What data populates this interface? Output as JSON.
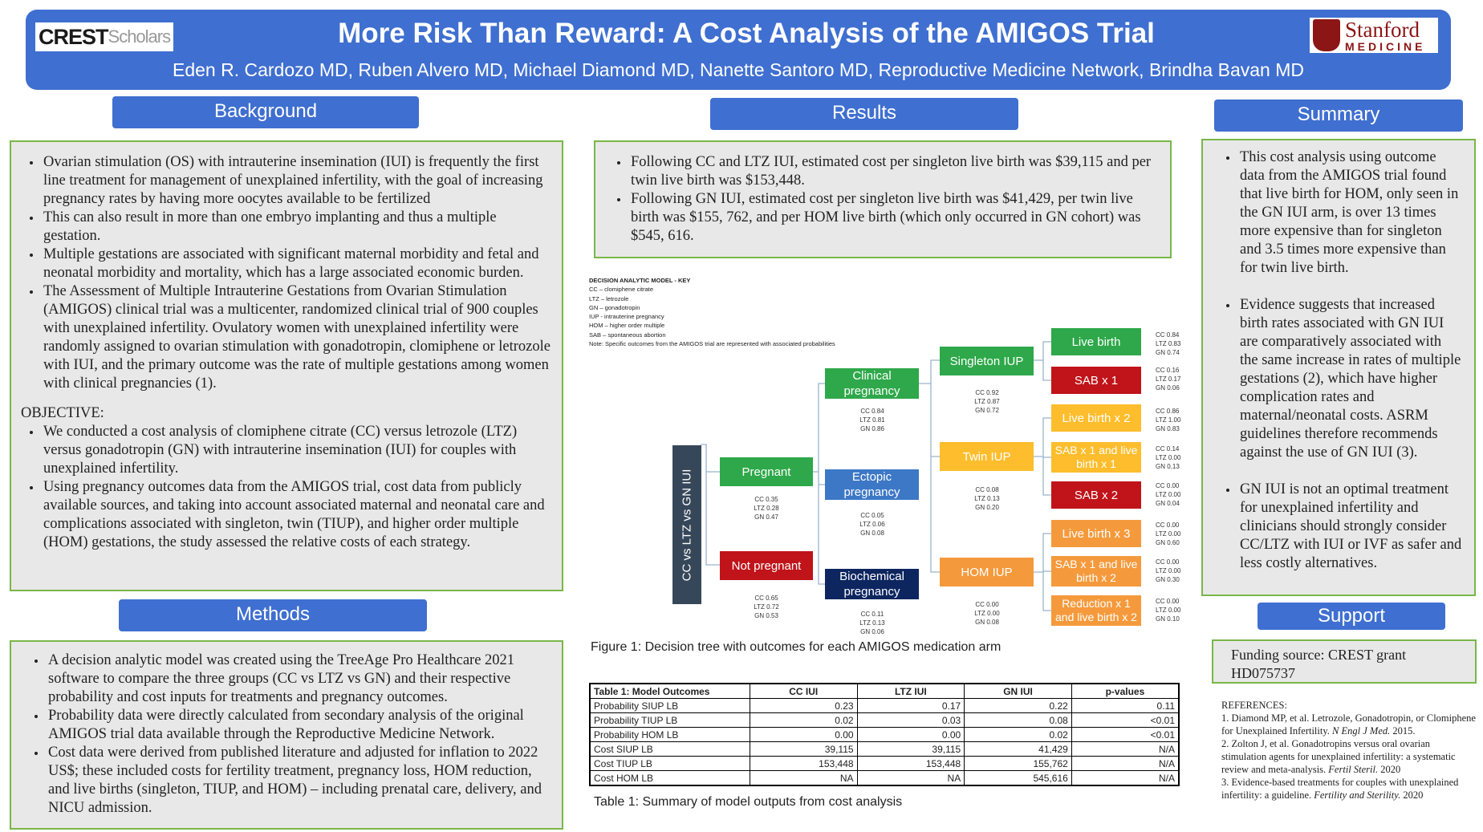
{
  "header": {
    "crest_logo": {
      "bold": "CREST",
      "light": "Scholars"
    },
    "title": "More Risk Than Reward: A Cost Analysis of the AMIGOS Trial",
    "authors": "Eden R. Cardozo MD, Ruben Alvero MD, Michael Diamond MD, Nanette Santoro MD, Reproductive Medicine Network, Brindha Bavan MD",
    "stanford_logo": {
      "name": "Stanford",
      "sub": "MEDICINE"
    }
  },
  "background": {
    "heading": "Background",
    "bullets": [
      "Ovarian stimulation (OS) with intrauterine insemination (IUI) is frequently the first line treatment for management of unexplained infertility, with the goal of increasing pregnancy rates by having more oocytes available to be fertilized",
      "This can also result in more than one embryo implanting and thus a multiple gestation.",
      "Multiple gestations are associated with significant maternal morbidity and fetal and neonatal morbidity and mortality, which has a large associated economic burden.",
      "The Assessment of Multiple Intrauterine Gestations from Ovarian Stimulation (AMIGOS) clinical trial was a multicenter, randomized clinical trial of 900 couples with unexplained infertility.  Ovulatory women with unexplained infertility were randomly assigned to ovarian stimulation with gonadotropin, clomiphene or letrozole with IUI, and the primary outcome was the rate of multiple gestations among women with clinical pregnancies (1)."
    ],
    "objective_label": "OBJECTIVE:",
    "objective_bullets": [
      "We conducted a cost analysis of clomiphene citrate (CC) versus letrozole (LTZ) versus gonadotropin (GN) with intrauterine insemination (IUI) for couples with unexplained infertility.",
      "Using pregnancy outcomes data from the AMIGOS trial, cost data from publicly available sources, and taking into account associated maternal and neonatal care and complications associated with singleton, twin (TIUP), and higher order multiple (HOM) gestations, the study assessed the relative costs of each strategy."
    ]
  },
  "methods": {
    "heading": "Methods",
    "bullets": [
      "A decision analytic model was created using the TreeAge Pro Healthcare 2021 software to compare the three groups (CC vs LTZ vs GN) and their respective probability and cost inputs for treatments and pregnancy outcomes.",
      "Probability data were directly calculated from secondary analysis of the original AMIGOS trial data available through the Reproductive Medicine Network.",
      "Cost data were derived from published literature and adjusted for inflation to 2022 US$; these included costs for fertility treatment, pregnancy loss, HOM reduction, and live births (singleton, TIUP, and HOM) – including prenatal care, delivery, and NICU admission."
    ]
  },
  "results": {
    "heading": "Results",
    "bullets": [
      "Following CC and LTZ IUI, estimated cost per singleton live birth was $39,115 and per twin live birth was $153,448.",
      "Following GN IUI, estimated cost per singleton live birth was $41,429, per twin live birth was $155, 762, and per HOM live birth (which only occurred in GN cohort) was $545, 616."
    ],
    "key": {
      "title": "DECISION ANALYTIC MODEL - KEY",
      "lines": [
        "CC – clomiphene citrate",
        "LTZ – letrozole",
        "GN – gonadotropin",
        "IUP - intrauterine pregnancy",
        "HOM – higher order multiple",
        "SAB – spontaneous abortion",
        "Note: Specific outcomes from the AMIGOS trial are represented with associated probabilities"
      ]
    },
    "tree": {
      "root": "CC vs LTZ vs GN IUI",
      "nodes": {
        "pregnant": {
          "label": "Pregnant",
          "probs": [
            "CC 0.35",
            "LTZ 0.28",
            "GN 0.47"
          ]
        },
        "not_pregnant": {
          "label": "Not pregnant",
          "probs": [
            "CC 0.65",
            "LTZ 0.72",
            "GN 0.53"
          ]
        },
        "clinical": {
          "label": "Clinical pregnancy",
          "probs": [
            "CC 0.84",
            "LTZ 0.81",
            "GN 0.86"
          ]
        },
        "ectopic": {
          "label": "Ectopic pregnancy",
          "probs": [
            "CC 0.05",
            "LTZ 0.06",
            "GN 0.08"
          ]
        },
        "biochemical": {
          "label": "Biochemical pregnancy",
          "probs": [
            "CC 0.11",
            "LTZ 0.13",
            "GN 0.06"
          ]
        },
        "singleton": {
          "label": "Singleton IUP",
          "probs": [
            "CC 0.92",
            "LTZ 0.87",
            "GN 0.72"
          ]
        },
        "twin": {
          "label": "Twin IUP",
          "probs": [
            "CC 0.08",
            "LTZ 0.13",
            "GN 0.20"
          ]
        },
        "hom": {
          "label": "HOM IUP",
          "probs": [
            "CC 0.00",
            "LTZ 0.00",
            "GN 0.08"
          ]
        },
        "live1": {
          "label": "Live birth",
          "probs": [
            "CC 0.84",
            "LTZ 0.83",
            "GN 0.74"
          ]
        },
        "sab1": {
          "label": "SAB x 1",
          "probs": [
            "CC 0.16",
            "LTZ 0.17",
            "GN 0.06"
          ]
        },
        "live2": {
          "label": "Live birth x 2",
          "probs": [
            "CC 0.86",
            "LTZ 1.00",
            "GN 0.83"
          ]
        },
        "sab1live1": {
          "label": "SAB x 1 and live birth x 1",
          "probs": [
            "CC 0.14",
            "LTZ 0.00",
            "GN 0.13"
          ]
        },
        "sab2": {
          "label": "SAB x 2",
          "probs": [
            "CC 0.00",
            "LTZ 0.00",
            "GN 0.04"
          ]
        },
        "live3": {
          "label": "Live birth x 3",
          "probs": [
            "CC 0.00",
            "LTZ 0.00",
            "GN 0.60"
          ]
        },
        "sab1live2": {
          "label": "SAB x 1 and live birth x 2",
          "probs": [
            "CC 0.00",
            "LTZ 0.00",
            "GN 0.30"
          ]
        },
        "reduction": {
          "label": "Reduction x 1 and live birth x 2",
          "probs": [
            "CC 0.00",
            "LTZ 0.00",
            "GN 0.10"
          ]
        }
      },
      "colors": {
        "navy": "#37475a",
        "green": "#2ea84a",
        "red": "#c0141a",
        "blue": "#3d78c6",
        "darknavy": "#0d2660",
        "orange": "#f59a3c",
        "yellow": "#fdbd2c"
      }
    },
    "figure_caption": "Figure 1: Decision tree with outcomes for each AMIGOS medication arm",
    "table": {
      "title": "Table 1: Model Outcomes",
      "columns": [
        "CC IUI",
        "LTZ IUI",
        "GN IUI",
        "p-values"
      ],
      "rows": [
        {
          "label": "Probability SIUP LB",
          "cells": [
            "0.23",
            "0.17",
            "0.22",
            "0.11"
          ]
        },
        {
          "label": "Probability TIUP LB",
          "cells": [
            "0.02",
            "0.03",
            "0.08",
            "<0.01"
          ]
        },
        {
          "label": "Probability HOM LB",
          "cells": [
            "0.00",
            "0.00",
            "0.02",
            "<0.01"
          ]
        },
        {
          "label": "Cost SIUP LB",
          "cells": [
            "39,115",
            "39,115",
            "41,429",
            "N/A"
          ]
        },
        {
          "label": "Cost TIUP LB",
          "cells": [
            "153,448",
            "153,448",
            "155,762",
            "N/A"
          ]
        },
        {
          "label": "Cost HOM LB",
          "cells": [
            "NA",
            "NA",
            "545,616",
            "N/A"
          ]
        }
      ]
    },
    "table_caption": "Table 1: Summary of model outputs from cost analysis"
  },
  "summary": {
    "heading": "Summary",
    "bullets": [
      "This cost analysis using outcome data from the AMIGOS trial found that live birth for HOM, only seen in the GN IUI arm, is over 13 times more expensive than for singleton and 3.5 times more expensive than for twin live birth.",
      "Evidence suggests that increased birth rates associated with GN IUI are comparatively associated with the same increase in rates of multiple gestations (2), which have higher complication rates and maternal/neonatal costs. ASRM guidelines therefore recommends against the use of GN IUI (3).",
      "GN IUI is not an optimal treatment for unexplained infertility and clinicians should strongly consider CC/LTZ with IUI or IVF as safer and less costly alternatives."
    ]
  },
  "support": {
    "heading": "Support",
    "funding": "Funding source: CREST grant HD075737"
  },
  "references": {
    "label": "REFERENCES:",
    "items": [
      {
        "text": "1. Diamond MP, et al. Letrozole, Gonadotropin, or Clomiphene for Unexplained Infertility. ",
        "journal": "N Engl J Med.",
        "year": "2015."
      },
      {
        "text": "2. Zolton J, et al. Gonadotropins versus oral ovarian stimulation agents for unexplained infertility: a systematic review and meta-analysis. ",
        "journal": "Fertil Steril.",
        "year": "2020"
      },
      {
        "text": "3. Evidence-based treatments for couples with unexplained infertility: a guideline. ",
        "journal": "Fertility and Sterility.",
        "year": "2020"
      }
    ]
  }
}
